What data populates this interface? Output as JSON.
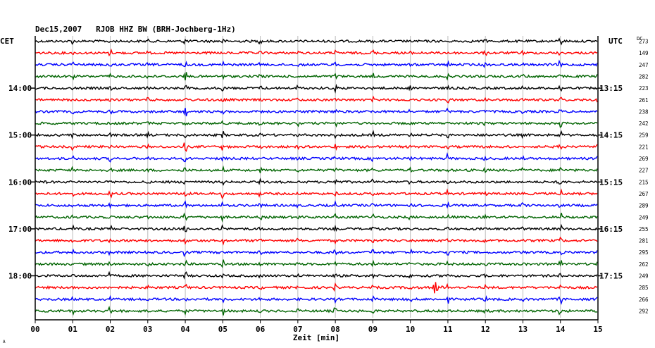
{
  "chart_data": {
    "type": "line",
    "title": "Dec15,2007   RJOB HHZ BW (BRH-Jochberg-1Hz)",
    "xlabel": "Zeit [min]",
    "left_axis_label": "CET",
    "right_axis_label": "UTC",
    "dc_label": "DC",
    "xlim": [
      0,
      15
    ],
    "x_ticks": [
      "00",
      "01",
      "02",
      "03",
      "04",
      "05",
      "06",
      "07",
      "08",
      "09",
      "10",
      "11",
      "12",
      "13",
      "14",
      "15"
    ],
    "grid": true,
    "left_time_labels": [
      {
        "row": 4,
        "text": "14:00"
      },
      {
        "row": 8,
        "text": "15:00"
      },
      {
        "row": 12,
        "text": "16:00"
      },
      {
        "row": 16,
        "text": "17:00"
      },
      {
        "row": 20,
        "text": "18:00"
      }
    ],
    "right_time_labels": [
      {
        "row": 4,
        "text": "13:15"
      },
      {
        "row": 8,
        "text": "14:15"
      },
      {
        "row": 12,
        "text": "15:15"
      },
      {
        "row": 16,
        "text": "16:15"
      },
      {
        "row": 20,
        "text": "17:15"
      }
    ],
    "colors": [
      "#000000",
      "#ff0000",
      "#0000ff",
      "#006400"
    ],
    "dc_values": [
      273,
      149,
      247,
      282,
      223,
      261,
      238,
      242,
      259,
      221,
      269,
      227,
      215,
      267,
      289,
      249,
      255,
      281,
      295,
      262,
      249,
      285,
      266,
      292
    ],
    "noise_amplitude": 1.6,
    "minute_pulses": [
      {
        "minute": 1,
        "amplitude": 4
      },
      {
        "minute": 2,
        "amplitude": 4
      },
      {
        "minute": 3,
        "amplitude": 3
      },
      {
        "minute": 4,
        "amplitude": 5
      },
      {
        "minute": 5,
        "amplitude": 5
      },
      {
        "minute": 6,
        "amplitude": 3
      },
      {
        "minute": 7,
        "amplitude": 3
      },
      {
        "minute": 8,
        "amplitude": 4
      },
      {
        "minute": 9,
        "amplitude": 4
      },
      {
        "minute": 10,
        "amplitude": 3
      },
      {
        "minute": 11,
        "amplitude": 5
      },
      {
        "minute": 12,
        "amplitude": 3
      },
      {
        "minute": 13,
        "amplitude": 3
      },
      {
        "minute": 14,
        "amplitude": 5
      },
      {
        "minute": 15,
        "amplitude": 3
      }
    ],
    "events": [
      {
        "row": 21,
        "minute": 10.6,
        "amplitude": 17,
        "coda_minutes": 0.5
      },
      {
        "row": 21,
        "minute": 11.5,
        "amplitude": 4,
        "coda_minutes": 0.3
      },
      {
        "row": 21,
        "minute": 12.6,
        "amplitude": 2,
        "coda_minutes": 0.3
      },
      {
        "row": 12,
        "minute": 0.3,
        "amplitude": 4,
        "coda_minutes": 0.2
      },
      {
        "row": 23,
        "minute": 1.8,
        "amplitude": 3,
        "coda_minutes": 0.3
      },
      {
        "row": 2,
        "minute": 1.0,
        "amplitude": 5,
        "coda_minutes": 0.1
      },
      {
        "row": 6,
        "minute": 1.0,
        "amplitude": 6,
        "coda_minutes": 0.1
      },
      {
        "row": 0,
        "minute": 0.3,
        "amplitude": 3,
        "coda_minutes": 0.1
      }
    ]
  },
  "footer": {
    "corner_mark": "A"
  }
}
